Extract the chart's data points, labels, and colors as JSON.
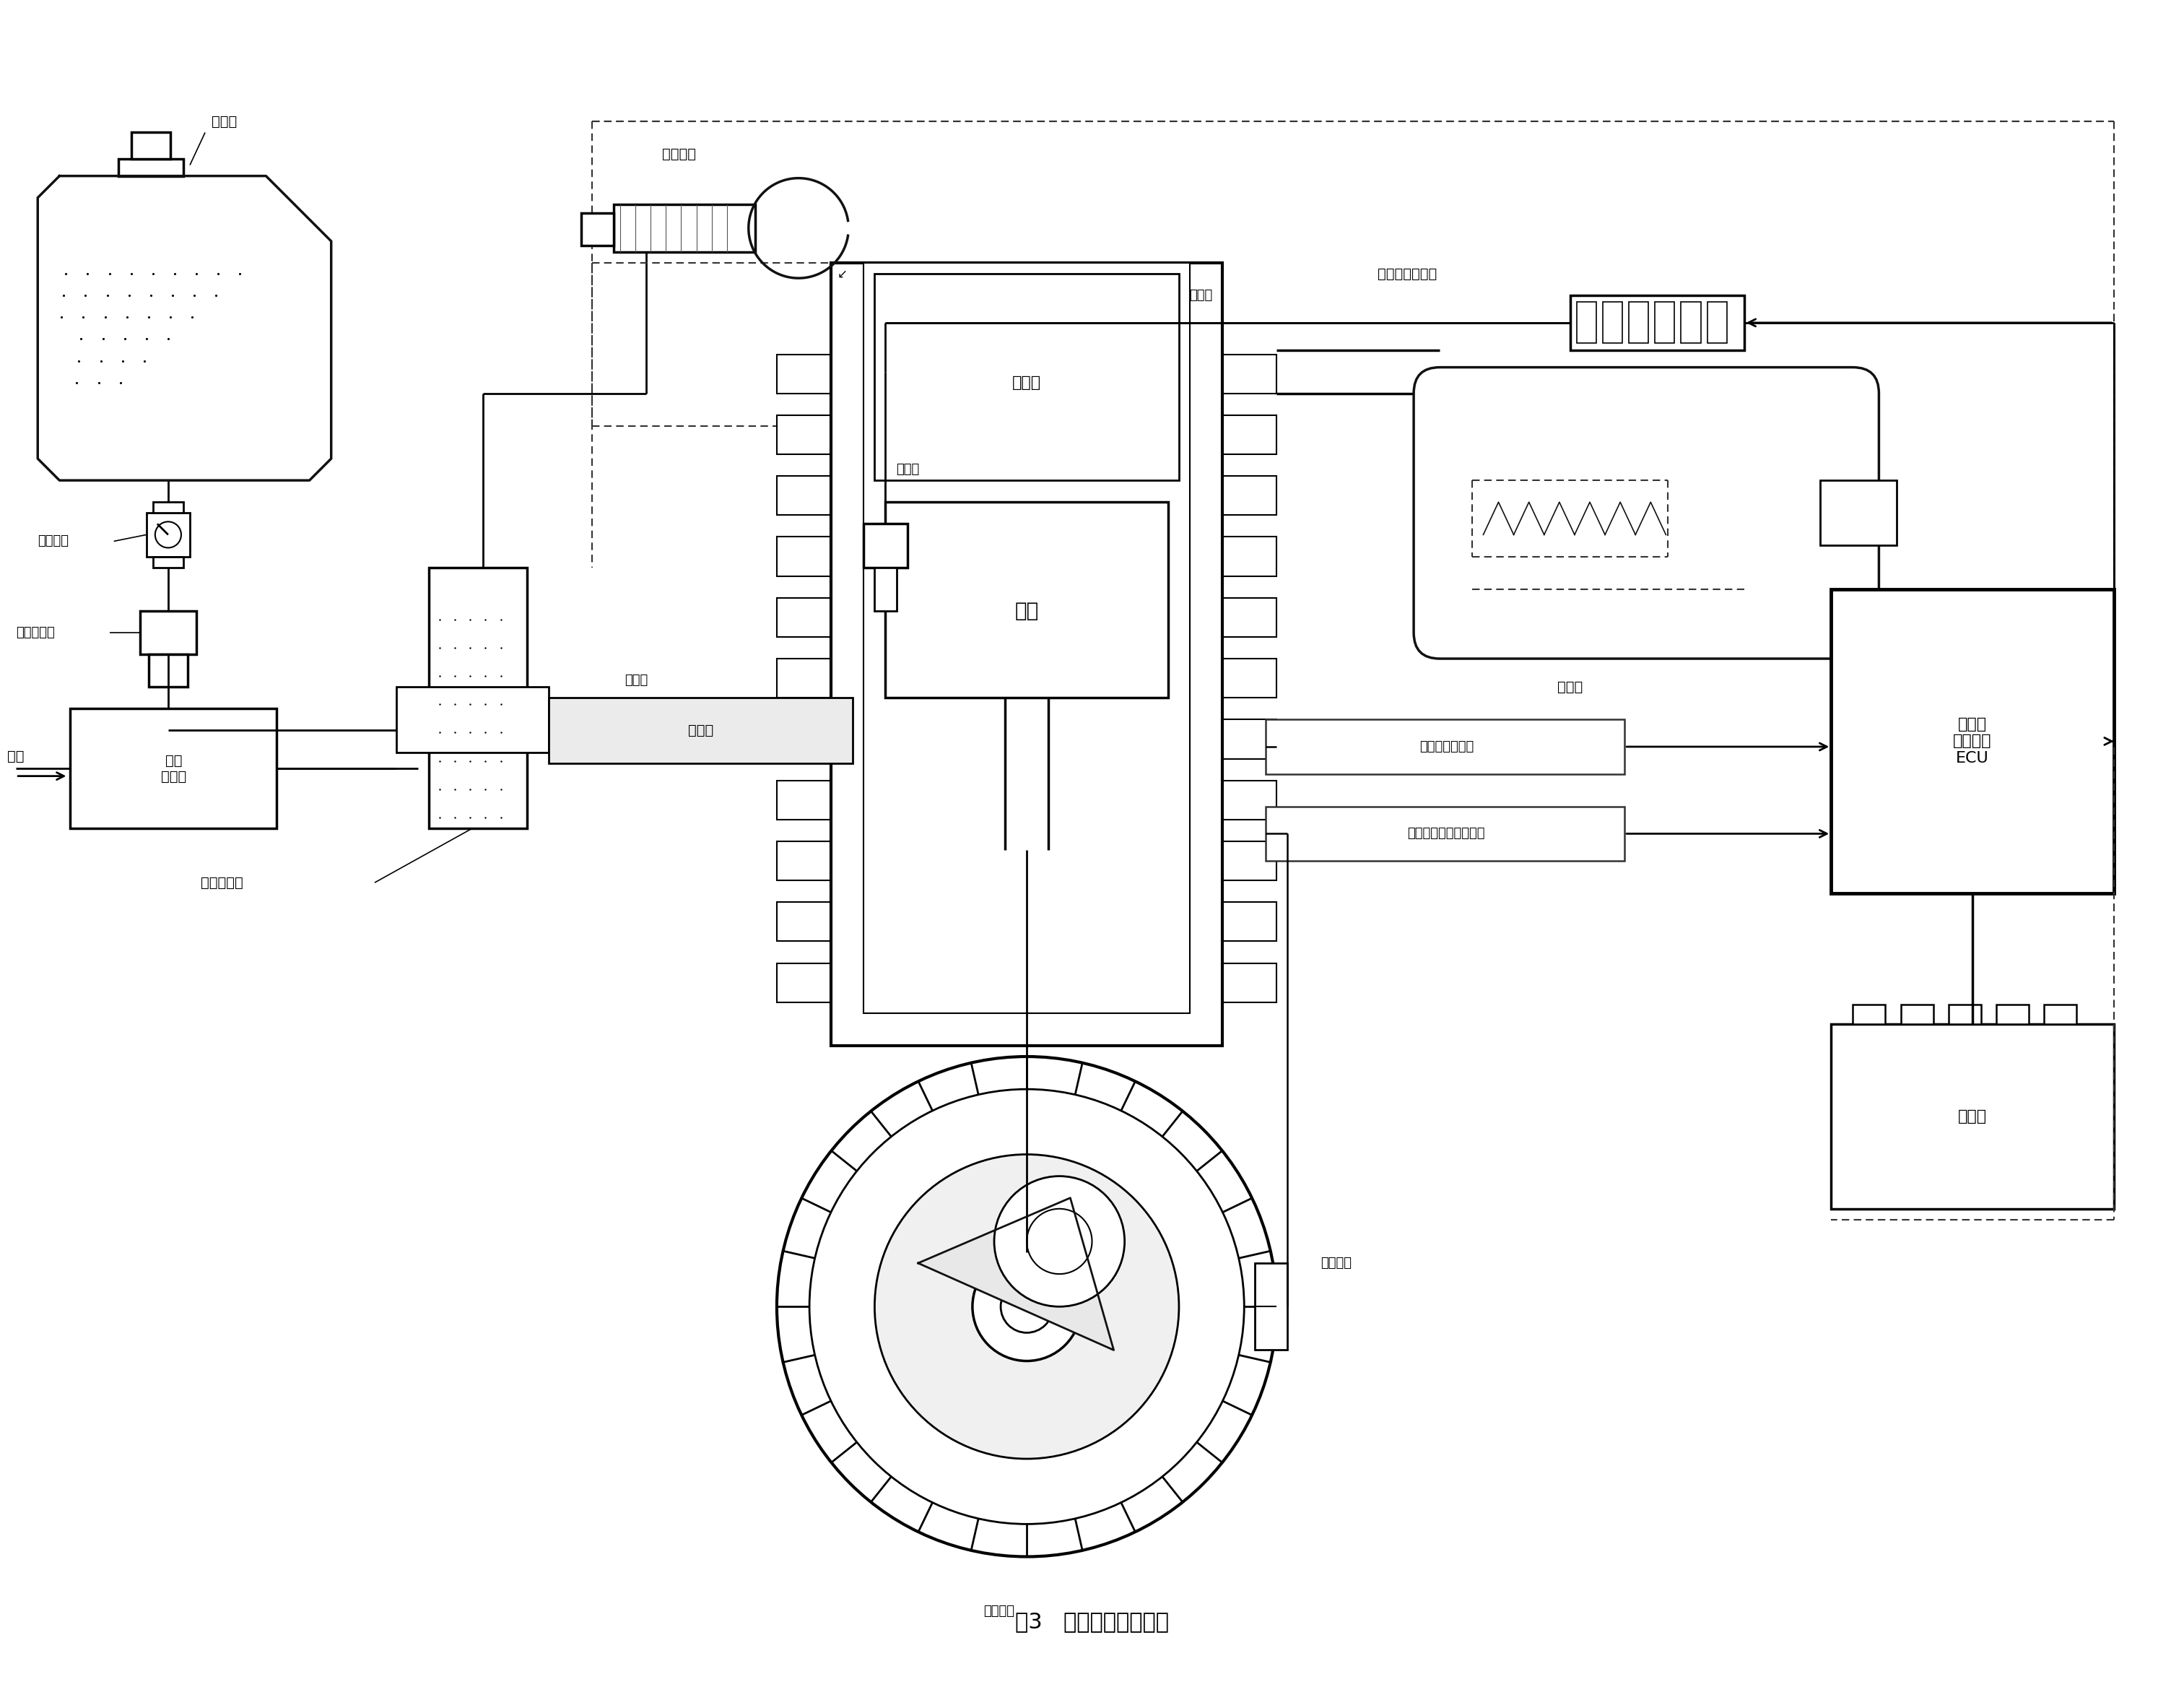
{
  "title": "图3   控制点火方案原理",
  "bg_color": "#ffffff",
  "lc": "#111111",
  "labels": {
    "fuel_tank": "燃油箱",
    "throttle": "油门手把",
    "fuel_switch": "油箱开关",
    "fuel_filter": "燃油滤清器",
    "air": "空气",
    "air_filter": "空气\n滤清器",
    "ecu_carb": "电控化油器",
    "intake_pipe": "进气管",
    "spark_plug": "火花塞",
    "exhaust_pipe": "排气管",
    "ignition_coil": "电感式点火线圈",
    "mixed_gas": "混合气",
    "combustion": "燃烧室",
    "piston": "活塞",
    "muffler": "消声器",
    "cyl_temp": "缸壁温度传感器",
    "speed_signal": "转速信号和曲轴相位角",
    "trigger_coil": "触发线圈",
    "flywheel": "多齿飞轮",
    "ecu": "摩托车\n电控系统\nECU",
    "battery": "蓄电池"
  }
}
